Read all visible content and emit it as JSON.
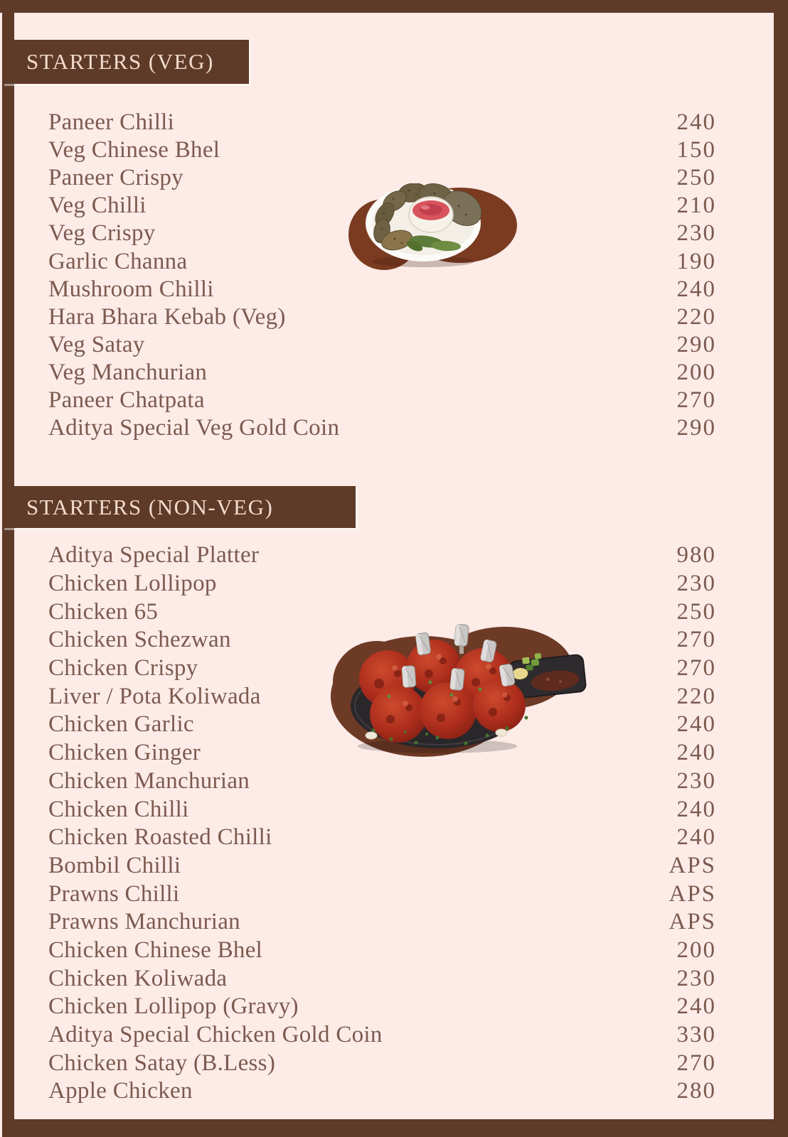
{
  "colors": {
    "background": "#fcebe7",
    "frame": "#5e3a28",
    "item_text": "#7c5a50",
    "header_text": "#f2dbcd"
  },
  "sections": [
    {
      "title": "STARTERS (VEG)",
      "items": [
        {
          "name": "Paneer Chilli",
          "price": "240"
        },
        {
          "name": "Veg Chinese Bhel",
          "price": "150"
        },
        {
          "name": "Paneer Crispy",
          "price": "250"
        },
        {
          "name": "Veg Chilli",
          "price": "210"
        },
        {
          "name": "Veg Crispy",
          "price": "230"
        },
        {
          "name": "Garlic Channa",
          "price": "190"
        },
        {
          "name": "Mushroom Chilli",
          "price": "240"
        },
        {
          "name": "Hara Bhara Kebab (Veg)",
          "price": "220"
        },
        {
          "name": "Veg Satay",
          "price": "290"
        },
        {
          "name": "Veg Manchurian",
          "price": "200"
        },
        {
          "name": "Paneer Chatpata",
          "price": "270"
        },
        {
          "name": "Aditya Special Veg Gold Coin",
          "price": "290"
        }
      ]
    },
    {
      "title": "STARTERS (NON-VEG)",
      "items": [
        {
          "name": "Aditya Special Platter",
          "price": "980"
        },
        {
          "name": "Chicken Lollipop",
          "price": "230"
        },
        {
          "name": "Chicken 65",
          "price": "250"
        },
        {
          "name": "Chicken Schezwan",
          "price": "270"
        },
        {
          "name": "Chicken Crispy",
          "price": "270"
        },
        {
          "name": "Liver / Pota Koliwada",
          "price": "220"
        },
        {
          "name": "Chicken Garlic",
          "price": "240"
        },
        {
          "name": "Chicken Ginger",
          "price": "240"
        },
        {
          "name": "Chicken Manchurian",
          "price": "230"
        },
        {
          "name": "Chicken Chilli",
          "price": "240"
        },
        {
          "name": "Chicken Roasted Chilli",
          "price": "240"
        },
        {
          "name": "Bombil Chilli",
          "price": "APS"
        },
        {
          "name": "Prawns Chilli",
          "price": "APS"
        },
        {
          "name": "Prawns Manchurian",
          "price": "APS"
        },
        {
          "name": "Chicken Chinese Bhel",
          "price": "200"
        },
        {
          "name": "Chicken Koliwada",
          "price": "230"
        },
        {
          "name": "Chicken Lollipop (Gravy)",
          "price": "240"
        },
        {
          "name": "Aditya Special Chicken Gold Coin",
          "price": "330"
        },
        {
          "name": "Chicken Satay (B.Less)",
          "price": "270"
        },
        {
          "name": "Apple Chicken",
          "price": "280"
        }
      ]
    }
  ],
  "photos": [
    {
      "name": "veg-starters-photo",
      "description": "white plate of veg kebabs with ketchup dip and fried green chillies on brown blob"
    },
    {
      "name": "nonveg-starters-photo",
      "description": "black plate of chicken lollipops with foil tips and sauce dish on brown blob"
    }
  ]
}
